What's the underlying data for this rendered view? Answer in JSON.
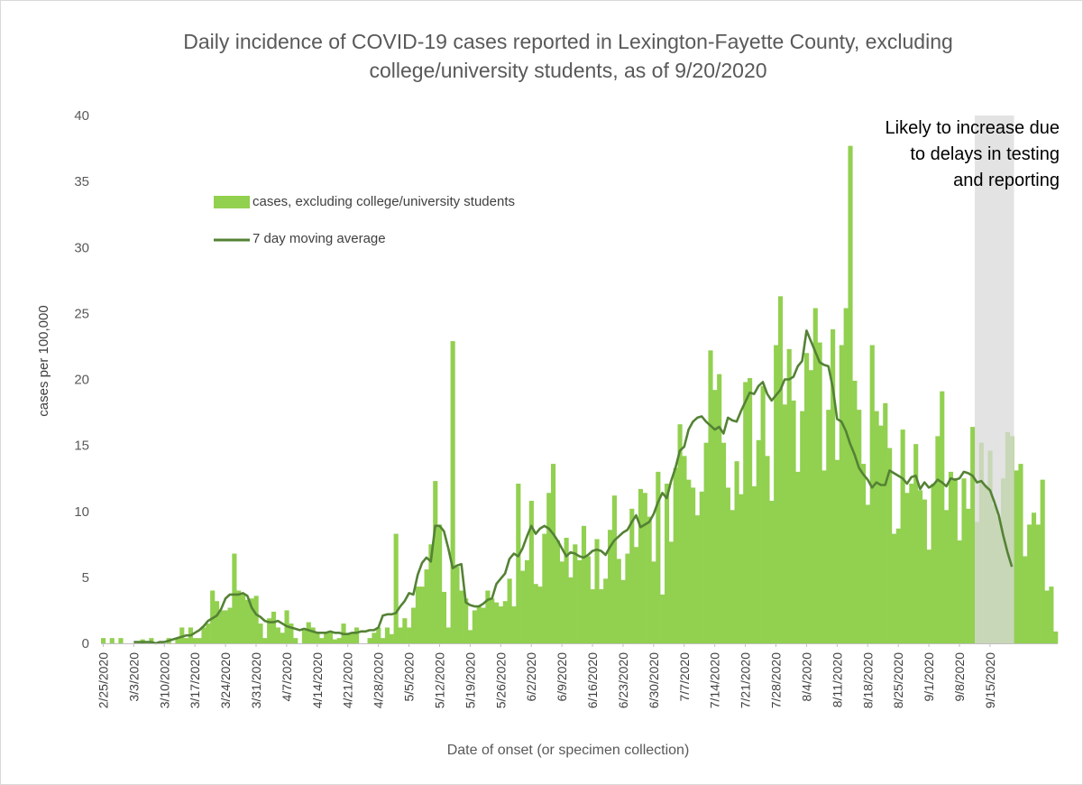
{
  "chart_data": {
    "type": "bar",
    "title_line1": "Daily incidence of COVID-19 cases reported in Lexington-Fayette County, excluding",
    "title_line2": "college/university students, as of 9/20/2020",
    "xlabel": "Date of onset (or specimen collection)",
    "ylabel": "cases per 100,000",
    "ylim": [
      0,
      40
    ],
    "yticks": [
      0,
      5,
      10,
      15,
      20,
      25,
      30,
      35,
      40
    ],
    "x_tick_labels": [
      "2/25/2020",
      "3/3/2020",
      "3/10/2020",
      "3/17/2020",
      "3/24/2020",
      "3/31/2020",
      "4/7/2020",
      "4/14/2020",
      "4/21/2020",
      "4/28/2020",
      "5/5/2020",
      "5/12/2020",
      "5/19/2020",
      "5/26/2020",
      "6/2/2020",
      "6/9/2020",
      "6/16/2020",
      "6/23/2020",
      "6/30/2020",
      "7/7/2020",
      "7/14/2020",
      "7/21/2020",
      "7/28/2020",
      "8/4/2020",
      "8/11/2020",
      "8/18/2020",
      "8/25/2020",
      "9/1/2020",
      "9/8/2020",
      "9/15/2020"
    ],
    "start_date": "2/25/2020",
    "end_date": "9/20/2020",
    "series": [
      {
        "name": "cases, excluding college/university students",
        "color": "#92d050",
        "values": [
          0.4,
          0,
          0.4,
          0,
          0.4,
          0,
          0,
          0,
          0,
          0.3,
          0,
          0.4,
          0,
          0,
          0,
          0.4,
          0,
          0.4,
          1.2,
          0.4,
          1.2,
          0.4,
          0.4,
          1.2,
          1.5,
          4,
          3.2,
          2.5,
          2.5,
          2.7,
          6.8,
          4,
          3.7,
          3.3,
          3.4,
          3.6,
          1.5,
          0.4,
          1.9,
          2.4,
          1.2,
          0.8,
          2.5,
          1.5,
          0.4,
          0,
          1,
          1.6,
          1.2,
          0.8,
          0.4,
          0.8,
          0.8,
          0.3,
          0.4,
          1.5,
          0.8,
          0.8,
          1.2,
          0,
          0,
          0.4,
          0.8,
          1.2,
          0.4,
          1.2,
          0.7,
          8.3,
          1.2,
          1.9,
          1.2,
          2.7,
          4.3,
          4.3,
          5.6,
          7.5,
          12.3,
          9,
          3.9,
          1.2,
          22.9,
          5.8,
          4,
          3.4,
          1,
          2.5,
          2.8,
          2.7,
          4,
          3.4,
          3.1,
          2.8,
          3.2,
          4.9,
          2.8,
          12.1,
          5.5,
          6.3,
          10.8,
          4.5,
          4.3,
          8.3,
          11.4,
          13.6,
          7.8,
          6.2,
          8,
          5,
          7.5,
          6.3,
          8.9,
          6.6,
          4.1,
          7.9,
          4.1,
          4.9,
          8.6,
          11.2,
          6.4,
          4.8,
          6.8,
          10.2,
          7.3,
          11.7,
          11.4,
          9.6,
          6.2,
          13,
          3.7,
          12.1,
          7.7,
          13.3,
          16.6,
          14.2,
          12.4,
          11.8,
          9.7,
          11.5,
          15.2,
          22.2,
          19.2,
          20.4,
          15.2,
          11.8,
          10.1,
          13.8,
          11.3,
          19.8,
          20.1,
          11.9,
          15.4,
          19.5,
          14.2,
          10.8,
          22.6,
          26.3,
          18.1,
          22.3,
          18.4,
          13,
          17.6,
          22,
          20.7,
          25.4,
          22.8,
          13.1,
          17.7,
          23.8,
          13.9,
          22.6,
          25.4,
          37.7,
          19.9,
          17.7,
          13.6,
          10.5,
          22.6,
          17.6,
          16.5,
          18.2,
          14.8,
          8.3,
          8.7,
          16.2,
          11.4,
          12.1,
          15.1,
          11.6,
          10.9,
          7.1,
          12.1,
          15.7,
          19.1,
          10.1,
          13,
          12.5,
          7.8,
          12.5,
          10.2,
          16.4,
          9.2,
          15.2,
          12,
          14.6,
          10.5,
          9.6,
          12.5,
          16,
          15.7,
          13.1,
          13.6,
          6.6,
          9,
          9.9,
          9,
          12.4,
          4,
          4.3,
          0.9
        ]
      },
      {
        "name": "7 day moving average",
        "color": "#548235",
        "values": [
          null,
          null,
          null,
          null,
          null,
          null,
          null,
          0.1,
          0.1,
          0.1,
          0.1,
          0.1,
          0,
          0.1,
          0.1,
          0.2,
          0.3,
          0.4,
          0.5,
          0.6,
          0.6,
          0.8,
          1,
          1.3,
          1.7,
          1.9,
          2.1,
          2.6,
          3.4,
          3.7,
          3.7,
          3.7,
          3.8,
          3.6,
          2.7,
          2.2,
          2,
          1.7,
          1.6,
          1.6,
          1.7,
          1.5,
          1.3,
          1.2,
          1.1,
          1,
          1.1,
          1,
          0.9,
          0.8,
          0.8,
          0.8,
          0.9,
          0.8,
          0.8,
          0.7,
          0.7,
          0.8,
          0.8,
          0.9,
          0.9,
          1,
          1,
          1.2,
          2.1,
          2.2,
          2.2,
          2.3,
          2.8,
          3.2,
          3.8,
          3.7,
          5.2,
          6.1,
          6.5,
          6.2,
          8.9,
          8.9,
          8.5,
          7.2,
          5.7,
          5.9,
          6,
          3.1,
          2.9,
          2.8,
          2.8,
          3,
          3.3,
          3.4,
          4.5,
          4.9,
          5.3,
          6.4,
          6.8,
          6.6,
          7.2,
          8.1,
          8.9,
          8.3,
          8.7,
          8.9,
          8.7,
          8.3,
          7.8,
          7.2,
          6.6,
          6.9,
          6.8,
          6.6,
          6.5,
          6.7,
          7,
          7.1,
          7,
          6.7,
          7.3,
          7.8,
          8.1,
          8.4,
          8.6,
          9.2,
          9.7,
          8.8,
          9,
          9.2,
          9.8,
          10.7,
          11.4,
          11,
          12.3,
          13.3,
          14.6,
          14.9,
          16.2,
          16.8,
          17.1,
          17.2,
          16.8,
          16.5,
          16.2,
          16.4,
          15.9,
          17.1,
          16.9,
          16.8,
          17.6,
          18.3,
          19,
          18.9,
          19.5,
          19.8,
          18.9,
          18.4,
          18.8,
          19.2,
          20,
          20,
          20.2,
          21,
          21.4,
          23.7,
          22.9,
          22.1,
          21.3,
          21.1,
          21,
          19.4,
          17,
          16.8,
          16.1,
          15.1,
          14.3,
          13.3,
          12.8,
          12.4,
          11.8,
          12.2,
          12,
          12,
          13.1,
          12.9,
          12.7,
          12.5,
          12.1,
          12.6,
          12.7,
          11.7,
          12.2,
          11.8,
          12,
          12.4,
          12.2,
          11.9,
          12.5,
          12.4,
          12.5,
          13,
          12.9,
          12.7,
          12.2,
          12.3,
          11.9,
          11.6,
          10.7,
          9.7,
          8.2,
          6.9,
          5.8
        ]
      }
    ],
    "annotation": {
      "lines": [
        "Likely to increase due",
        "to delays in testing",
        "and reporting"
      ],
      "shaded_from": "9/12/2020",
      "shaded_to": "9/20/2020",
      "shade_color": "#d9d9d9"
    },
    "legend_position": "upper-left",
    "grid": false
  }
}
